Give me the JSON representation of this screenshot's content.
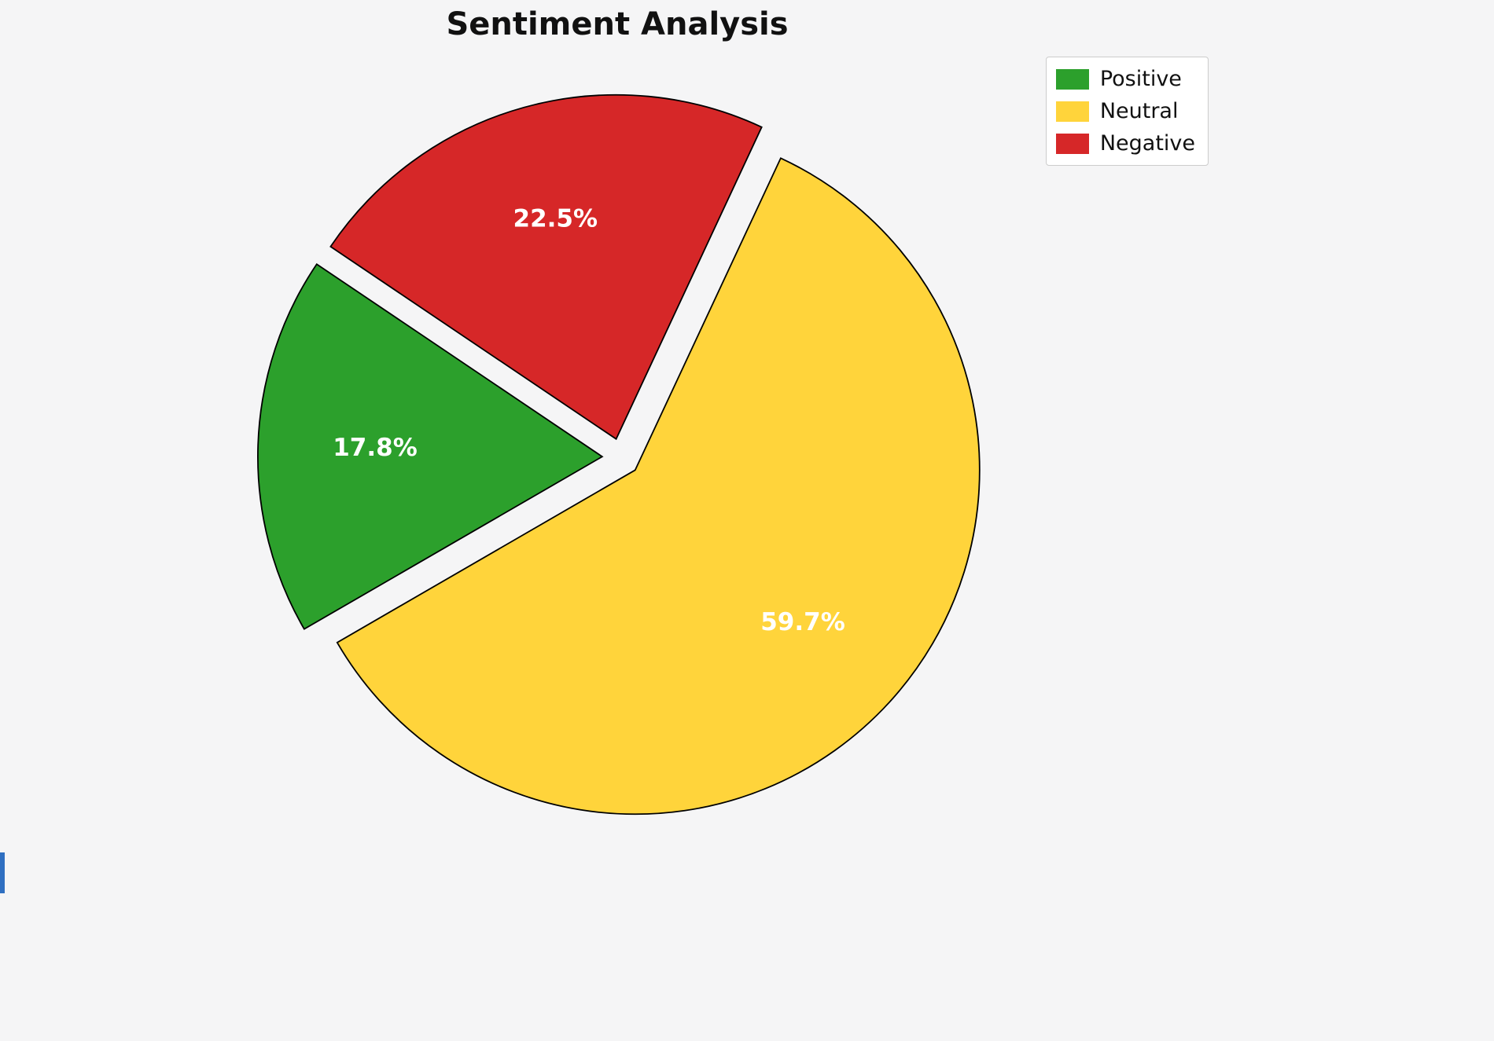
{
  "chart_data": {
    "type": "pie",
    "title": "Sentiment Analysis",
    "slices": [
      {
        "label": "Positive",
        "value": 17.8,
        "display": "17.8%",
        "color": "#2ca02c"
      },
      {
        "label": "Neutral",
        "value": 59.7,
        "display": "59.7%",
        "color": "#ffd43b"
      },
      {
        "label": "Negative",
        "value": 22.5,
        "display": "22.5%",
        "color": "#d62728"
      }
    ],
    "start_angle": 146,
    "direction": "counterclockwise",
    "explode": 0.055,
    "label_position": "inside",
    "label_color": "#ffffff",
    "legend_position": "upper right",
    "legend_items": [
      "Positive",
      "Neutral",
      "Negative"
    ],
    "background_color": "#f5f5f6",
    "slice_border_color": "#000000"
  }
}
